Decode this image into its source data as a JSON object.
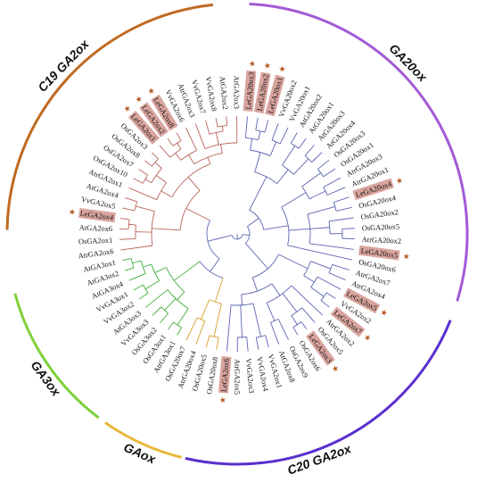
{
  "colors": {
    "blue": "#5a63b0",
    "red": "#b86458",
    "green": "#3fae3a",
    "orange": "#d4a028",
    "highlight": "#d9a49e",
    "star": "#b5571e",
    "arc_ga20ox": "#a35ad6",
    "arc_c19": "#bf6a22",
    "arc_ga3ox": "#7fd13a",
    "arc_gaox": "#e8b83a",
    "arc_c20": "#5a2fd0"
  },
  "groups": [
    {
      "label": "GA20ox",
      "color_key": "arc_ga20ox"
    },
    {
      "label": "C19 GA2ox",
      "color_key": "arc_c19"
    },
    {
      "label": "GA3ox",
      "color_key": "arc_ga3ox"
    },
    {
      "label": "GAox",
      "color_key": "arc_gaox"
    },
    {
      "label": "C20 GA2ox",
      "color_key": "arc_c20"
    }
  ],
  "leaves": [
    {
      "name": "LeGA20ox3",
      "color": "blue",
      "highlight": true
    },
    {
      "name": "LeGA20ox2",
      "color": "blue",
      "highlight": true
    },
    {
      "name": "LeGA20ox1",
      "color": "blue",
      "highlight": true
    },
    {
      "name": "VvGA20ox2",
      "color": "blue",
      "highlight": false
    },
    {
      "name": "VvGA20ox1",
      "color": "blue",
      "highlight": false
    },
    {
      "name": "AtGA20ox2",
      "color": "blue",
      "highlight": false
    },
    {
      "name": "AtGA20ox1",
      "color": "blue",
      "highlight": false
    },
    {
      "name": "AtGA20ox3",
      "color": "blue",
      "highlight": false
    },
    {
      "name": "AtGA20ox4",
      "color": "blue",
      "highlight": false
    },
    {
      "name": "OsGA20ox3",
      "color": "blue",
      "highlight": false
    },
    {
      "name": "OsGA20ox1",
      "color": "blue",
      "highlight": false
    },
    {
      "name": "AtrGA20ox3",
      "color": "blue",
      "highlight": false
    },
    {
      "name": "AtrGA20ox1",
      "color": "blue",
      "highlight": false
    },
    {
      "name": "LeGA20ox4",
      "color": "blue",
      "highlight": true
    },
    {
      "name": "OsGA20ox4",
      "color": "blue",
      "highlight": false
    },
    {
      "name": "OsGA20ox2",
      "color": "blue",
      "highlight": false
    },
    {
      "name": "OsGA20ox5",
      "color": "blue",
      "highlight": false
    },
    {
      "name": "AtrGA20ox2",
      "color": "blue",
      "highlight": false
    },
    {
      "name": "LeGA20ox5",
      "color": "blue",
      "highlight": true
    },
    {
      "name": "OsGA20ox6",
      "color": "blue",
      "highlight": false
    },
    {
      "name": "AtrGA2ox7",
      "color": "blue",
      "highlight": false
    },
    {
      "name": "AtrGA2ox4",
      "color": "blue",
      "highlight": false
    },
    {
      "name": "LeGA2ox5",
      "color": "blue",
      "highlight": true
    },
    {
      "name": "VvGA2ox2",
      "color": "blue",
      "highlight": false
    },
    {
      "name": "LeGA2ox7",
      "color": "blue",
      "highlight": true
    },
    {
      "name": "AtrGA2ox2",
      "color": "blue",
      "highlight": false
    },
    {
      "name": "OsGA2ox5",
      "color": "blue",
      "highlight": false
    },
    {
      "name": "LeGA2ox3",
      "color": "blue",
      "highlight": true
    },
    {
      "name": "OsGA2ox6",
      "color": "blue",
      "highlight": false
    },
    {
      "name": "OsGA2ox9",
      "color": "blue",
      "highlight": false
    },
    {
      "name": "AtGA2ox8",
      "color": "blue",
      "highlight": false
    },
    {
      "name": "VvGA2ox1",
      "color": "blue",
      "highlight": false
    },
    {
      "name": "VvGA2ox4",
      "color": "blue",
      "highlight": false
    },
    {
      "name": "VvGA2ox3",
      "color": "blue",
      "highlight": false
    },
    {
      "name": "AtrGA2ox5",
      "color": "blue",
      "highlight": false
    },
    {
      "name": "LeGA2ox6",
      "color": "blue",
      "highlight": true
    },
    {
      "name": "OsGA20ox8",
      "color": "orange",
      "highlight": false
    },
    {
      "name": "OsGA20ox5",
      "color": "orange",
      "highlight": false
    },
    {
      "name": "AtrGA20ox4",
      "color": "orange",
      "highlight": false
    },
    {
      "name": "OsGA20ox7",
      "color": "orange",
      "highlight": false
    },
    {
      "name": "AtrGA3ox1",
      "color": "green",
      "highlight": false
    },
    {
      "name": "OsGA3ox1",
      "color": "green",
      "highlight": false
    },
    {
      "name": "OsGA3ox2",
      "color": "green",
      "highlight": false
    },
    {
      "name": "VvGA3ox3",
      "color": "green",
      "highlight": false
    },
    {
      "name": "AtGA3ox3",
      "color": "green",
      "highlight": false
    },
    {
      "name": "VvGA3ox2",
      "color": "green",
      "highlight": false
    },
    {
      "name": "VvGA3ox1",
      "color": "green",
      "highlight": false
    },
    {
      "name": "AtGA3ox4",
      "color": "green",
      "highlight": false
    },
    {
      "name": "AtGA3ox2",
      "color": "green",
      "highlight": false
    },
    {
      "name": "AtGA3ox1",
      "color": "green",
      "highlight": false
    },
    {
      "name": "AtrGA2ox6",
      "color": "red",
      "highlight": false
    },
    {
      "name": "OsGA2ox1",
      "color": "red",
      "highlight": false
    },
    {
      "name": "AtGA2ox6",
      "color": "red",
      "highlight": false
    },
    {
      "name": "LeGA2ox4",
      "color": "red",
      "highlight": true
    },
    {
      "name": "VvGA2ox5",
      "color": "red",
      "highlight": false
    },
    {
      "name": "AtGA2ox4",
      "color": "red",
      "highlight": false
    },
    {
      "name": "AtrGA2ox1",
      "color": "red",
      "highlight": false
    },
    {
      "name": "OsGA2ox10",
      "color": "red",
      "highlight": false
    },
    {
      "name": "OsGA2ox7",
      "color": "red",
      "highlight": false
    },
    {
      "name": "OsGA2ox8",
      "color": "red",
      "highlight": false
    },
    {
      "name": "OsGA2ox3",
      "color": "red",
      "highlight": false
    },
    {
      "name": "LeGA2ox1",
      "color": "red",
      "highlight": true
    },
    {
      "name": "LeGA2ox2",
      "color": "red",
      "highlight": true
    },
    {
      "name": "LeGA2ox8",
      "color": "red",
      "highlight": true
    },
    {
      "name": "VvGA2ox6",
      "color": "red",
      "highlight": false
    },
    {
      "name": "AtrGA2ox3",
      "color": "red",
      "highlight": false
    },
    {
      "name": "VvGA2ox7",
      "color": "red",
      "highlight": false
    },
    {
      "name": "VvGA2ox8",
      "color": "red",
      "highlight": false
    },
    {
      "name": "AtGA2ox2",
      "color": "red",
      "highlight": false
    },
    {
      "name": "AtGA2ox3",
      "color": "red",
      "highlight": false
    }
  ]
}
